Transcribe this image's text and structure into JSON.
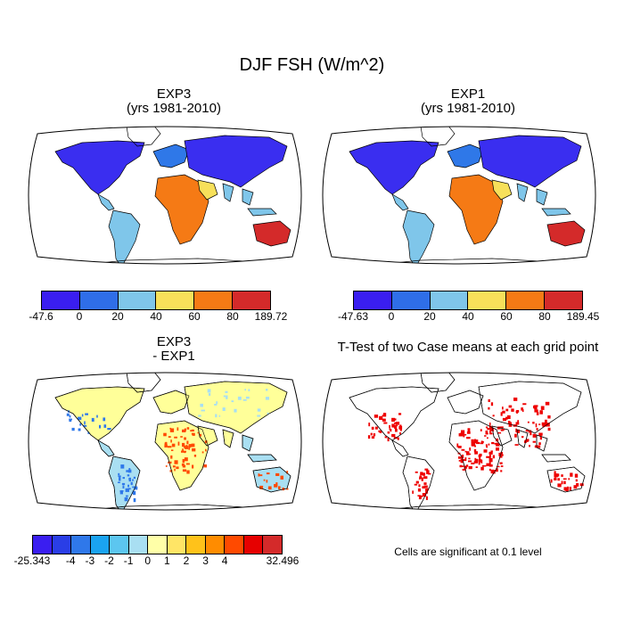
{
  "figure": {
    "title": "DJF FSH (W/m^2)",
    "footnote": "Cells are significant at 0.1 level"
  },
  "panels": [
    {
      "id": "exp3",
      "title_line1": "EXP3",
      "title_line2": "(yrs 1981-2010)"
    },
    {
      "id": "exp1",
      "title_line1": "EXP1",
      "title_line2": "(yrs 1981-2010)"
    },
    {
      "id": "diff",
      "title_line1": "EXP3",
      "title_line2": "- EXP1"
    },
    {
      "id": "ttest",
      "title_line1": "T-Test of two Case means at each grid point",
      "title_line2": ""
    }
  ],
  "colorbars": {
    "exp3": {
      "colors": [
        "#3a1ef0",
        "#2f6ee8",
        "#7fc6ea",
        "#f7e05a",
        "#f57a15",
        "#d42a2a"
      ],
      "labels": [
        "-47.6",
        "0",
        "20",
        "40",
        "60",
        "80",
        "189.72"
      ]
    },
    "exp1": {
      "colors": [
        "#3a1ef0",
        "#2f6ee8",
        "#7fc6ea",
        "#f7e05a",
        "#f57a15",
        "#d42a2a"
      ],
      "labels": [
        "-47.63",
        "0",
        "20",
        "40",
        "60",
        "80",
        "189.45"
      ]
    },
    "diff": {
      "colors": [
        "#3a1ef0",
        "#2a3ee6",
        "#2f78ea",
        "#1aa3f0",
        "#5cc6f0",
        "#a9dff2",
        "#ffffa8",
        "#ffe566",
        "#ffc21a",
        "#ff8c00",
        "#ff4a00",
        "#e60000",
        "#d42a2a"
      ],
      "labels": [
        "-25.343",
        "-4",
        "-3",
        "-2",
        "-1",
        "0",
        "1",
        "2",
        "3",
        "4",
        "32.496"
      ]
    }
  },
  "map_colors": {
    "exp_north": "#3a2ef0",
    "exp_mid": "#2f78e8",
    "exp_tropic": "#7fc6ea",
    "exp_hot": "#f57a15",
    "exp_very_hot": "#d42a2a",
    "exp_warm": "#f7e05a",
    "diff_pos": "#ffff99",
    "diff_light": "#a9dff2",
    "diff_hot": "#ff4a00",
    "diff_blue": "#2f78ea",
    "ttest_red": "#ee0000"
  }
}
